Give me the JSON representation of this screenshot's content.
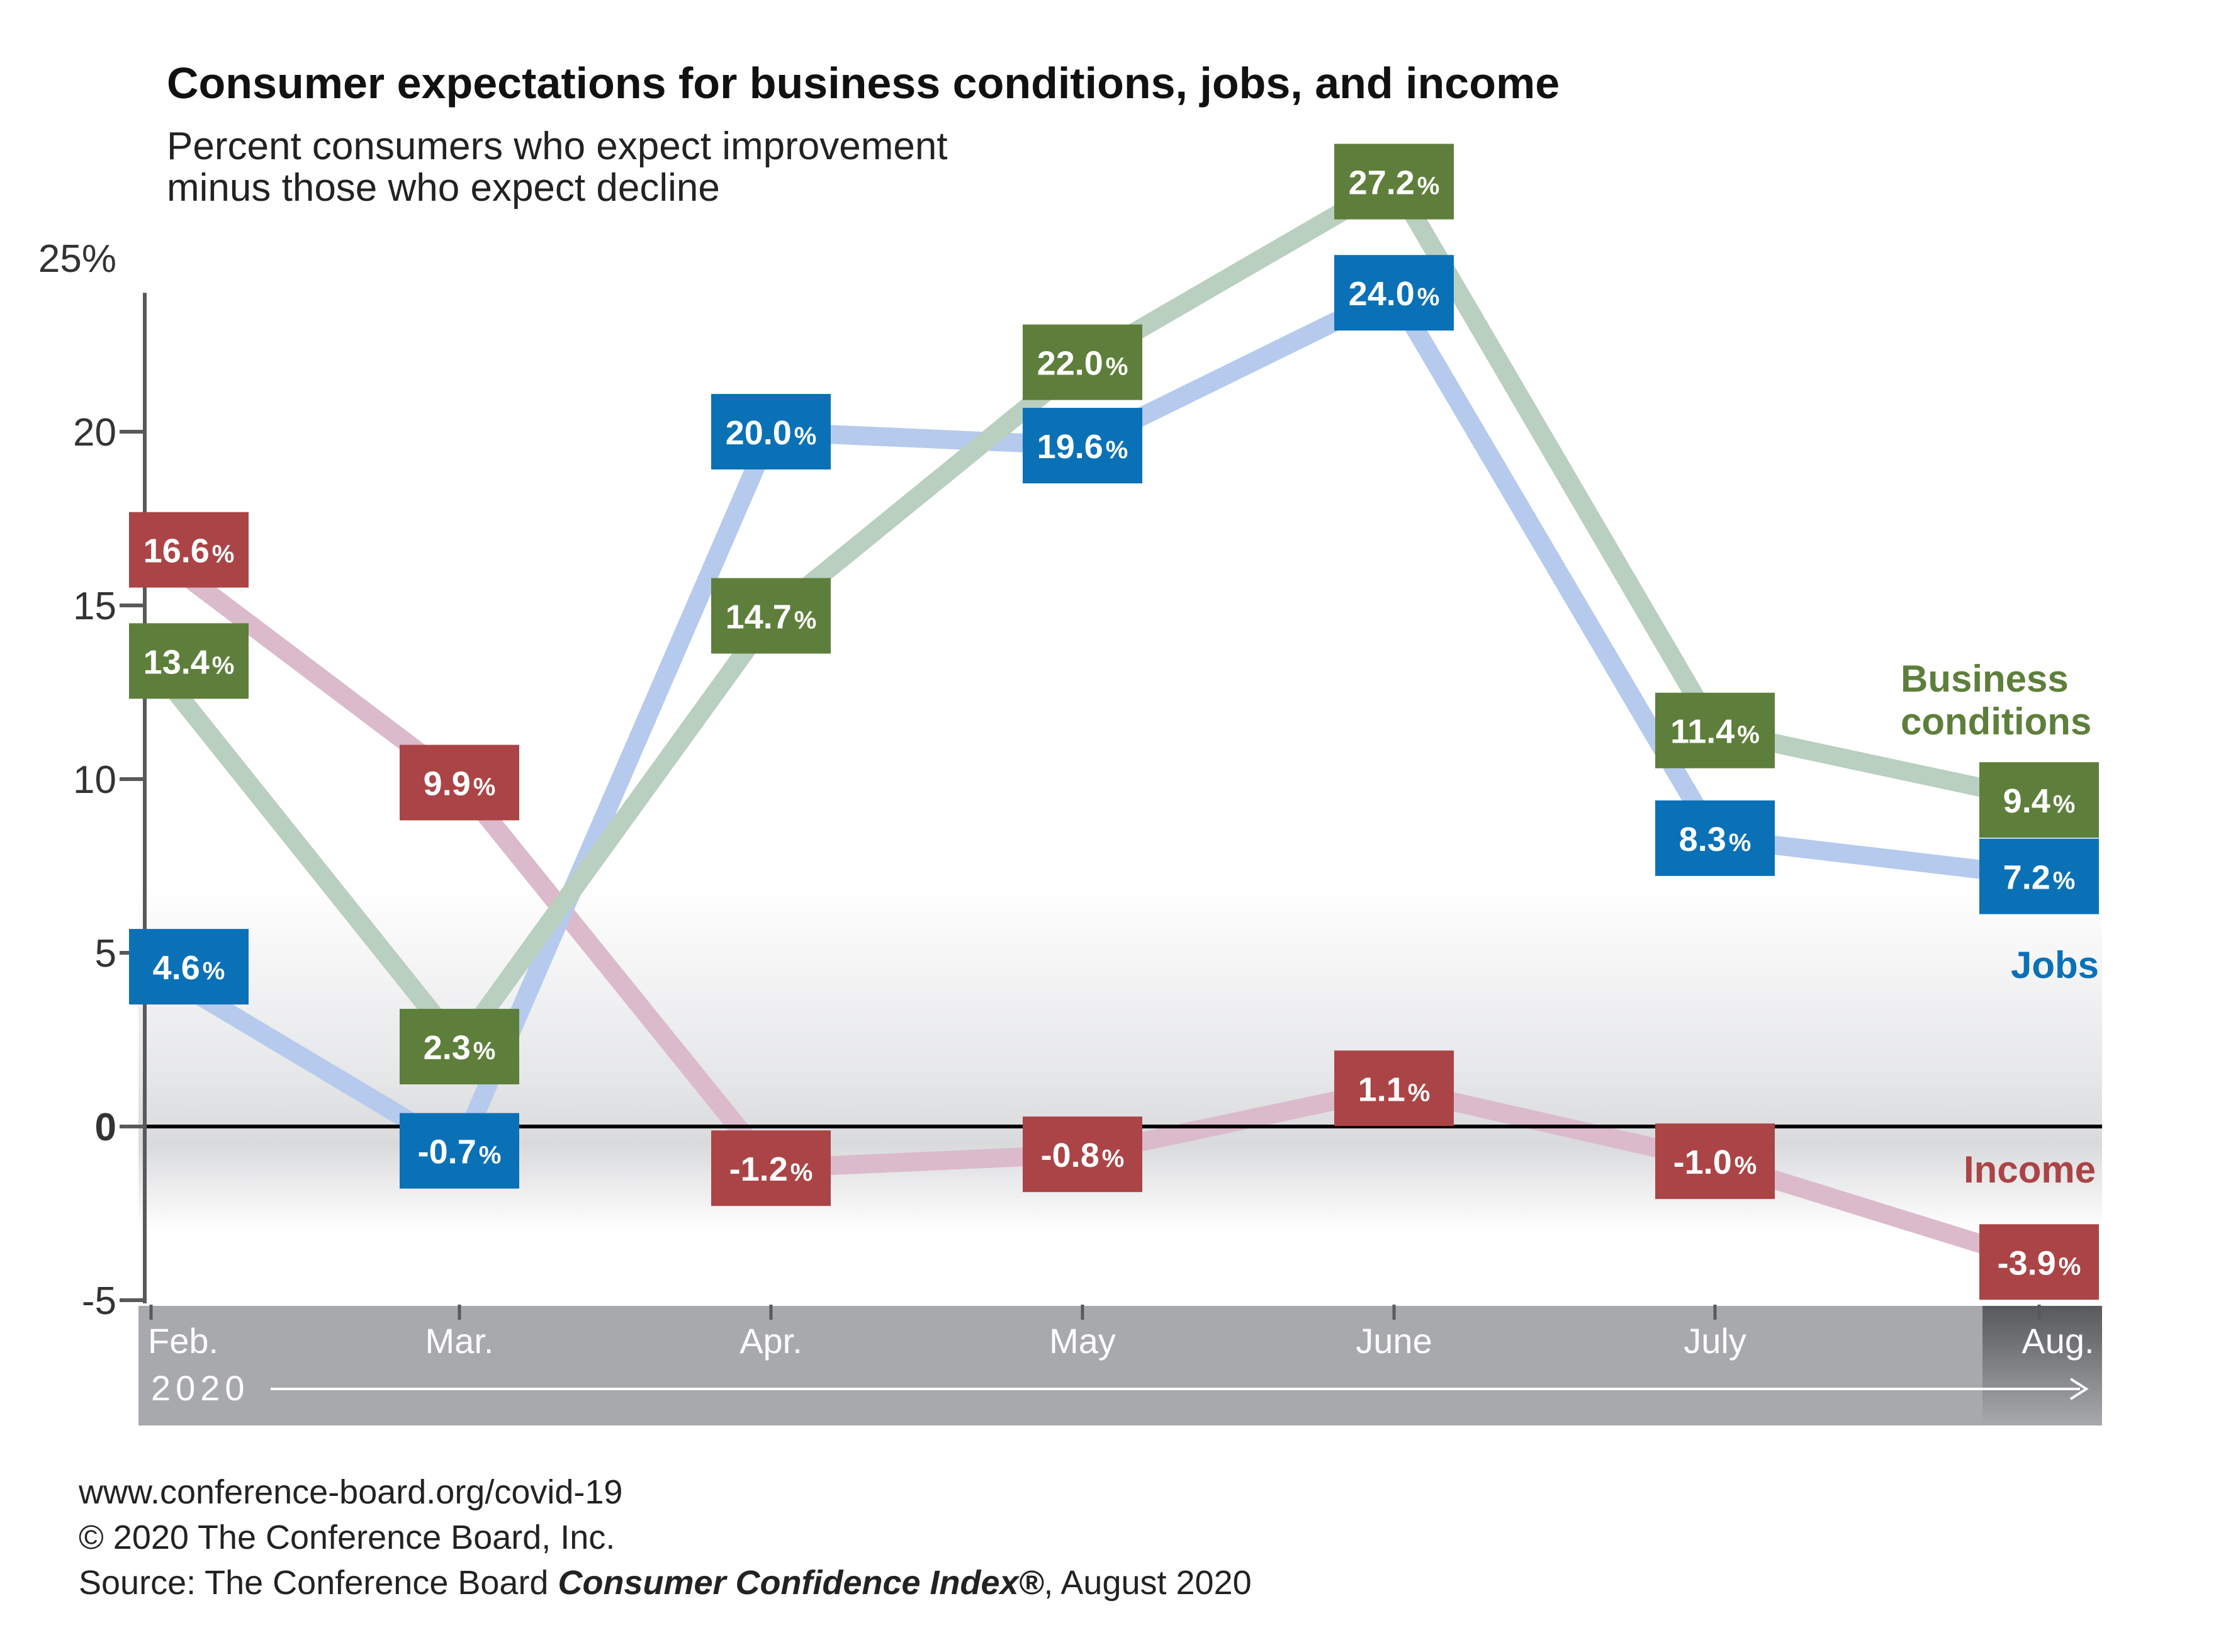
{
  "title": "Consumer expectations for business conditions, jobs, and income",
  "subtitle_line1": "Percent consumers who expect improvement",
  "subtitle_line2": "minus those who expect decline",
  "footer": {
    "url": "www.conference-board.org/covid-19",
    "copyright": "© 2020 The Conference Board, Inc.",
    "source_prefix": "Source:  The Conference Board ",
    "source_index": "Consumer Confidence Index®",
    "source_suffix": ", August 2020"
  },
  "colors": {
    "business_box": "#5e7f3b",
    "business_line": "#b9cfbf",
    "jobs_box": "#0a71b7",
    "jobs_line": "#b5caec",
    "income_box": "#ab4446",
    "income_line": "#dbbacb",
    "axis_band": "#a7a9ac",
    "axis_band_current": "#6d6e71"
  },
  "chart_data": {
    "type": "line",
    "categories": [
      "Feb.",
      "Mar.",
      "Apr.",
      "May",
      "June",
      "July",
      "Aug."
    ],
    "year_label": "2020",
    "y_ticks": [
      "25%",
      "20",
      "15",
      "10",
      "5",
      "0",
      "-5"
    ],
    "ylim": [
      -5,
      25
    ],
    "series": [
      {
        "name": "Business conditions",
        "name_lines": [
          "Business",
          "conditions"
        ],
        "values": [
          13.4,
          2.3,
          14.7,
          22.0,
          27.2,
          11.4,
          9.4
        ],
        "labels": [
          "13.4",
          "2.3",
          "14.7",
          "22.0",
          "27.2",
          "11.4",
          "9.4"
        ]
      },
      {
        "name": "Jobs",
        "name_lines": [
          "Jobs"
        ],
        "values": [
          4.6,
          -0.7,
          20.0,
          19.6,
          24.0,
          8.3,
          7.2
        ],
        "labels": [
          "4.6",
          "-0.7",
          "20.0",
          "19.6",
          "24.0",
          "8.3",
          "7.2"
        ]
      },
      {
        "name": "Income",
        "name_lines": [
          "Income"
        ],
        "values": [
          16.6,
          9.9,
          -1.2,
          -0.8,
          1.1,
          -1.0,
          -3.9
        ],
        "labels": [
          "16.6",
          "9.9",
          "-1.2",
          "-0.8",
          "1.1",
          "-1.0",
          "-3.9"
        ]
      }
    ],
    "value_suffix": "%"
  }
}
